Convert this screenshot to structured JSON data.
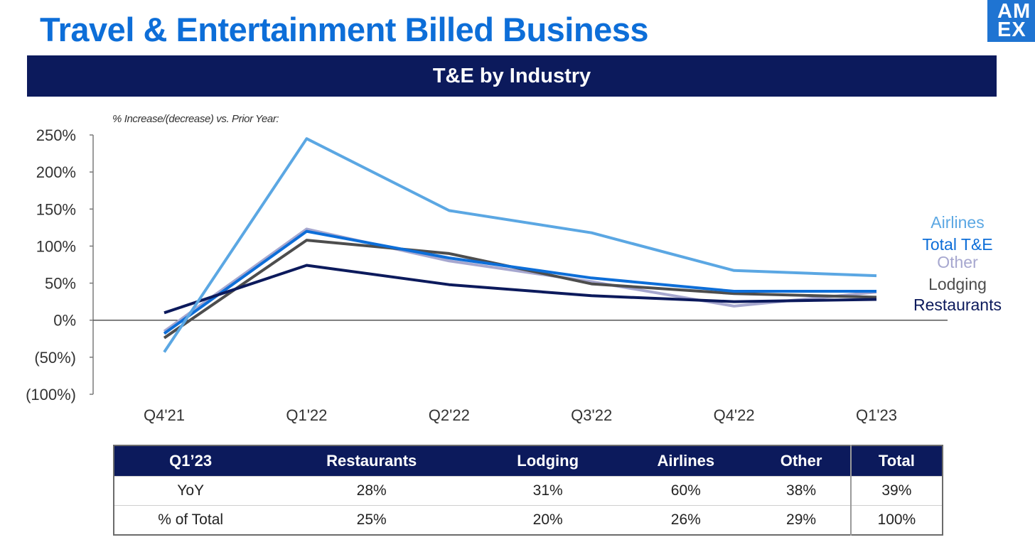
{
  "page": {
    "title": "Travel & Entertainment Billed Business",
    "banner": "T&E by Industry",
    "logo": {
      "line1": "AM",
      "line2": "EX"
    }
  },
  "colors": {
    "title": "#0d6ed8",
    "banner_bg": "#0c1a5c",
    "logo_bg": "#1f74d2",
    "airlines": "#5ba7e3",
    "total": "#0d6ed8",
    "other": "#a6a7cf",
    "lodging": "#4d4d4d",
    "restaurants": "#0c1a5c"
  },
  "chart_data": {
    "type": "line",
    "subtitle": "% Increase/(decrease) vs. Prior Year:",
    "categories": [
      "Q4'21",
      "Q1'22",
      "Q2'22",
      "Q3'22",
      "Q4'22",
      "Q1'23"
    ],
    "ylim": [
      -100,
      250
    ],
    "yticks": [
      {
        "value": 250,
        "label": "250%"
      },
      {
        "value": 200,
        "label": "200%"
      },
      {
        "value": 150,
        "label": "150%"
      },
      {
        "value": 100,
        "label": "100%"
      },
      {
        "value": 50,
        "label": "50%"
      },
      {
        "value": 0,
        "label": "0%"
      },
      {
        "value": -50,
        "label": "(50%)"
      },
      {
        "value": -100,
        "label": "(100%)"
      }
    ],
    "series": [
      {
        "name": "Other",
        "color": "#a6a7cf",
        "values": [
          -15,
          123,
          80,
          52,
          19,
          38
        ]
      },
      {
        "name": "Lodging",
        "color": "#4d4d4d",
        "values": [
          -24,
          108,
          90,
          49,
          36,
          31
        ]
      },
      {
        "name": "Total T&E",
        "color": "#0d6ed8",
        "values": [
          -18,
          120,
          84,
          57,
          39,
          39
        ]
      },
      {
        "name": "Restaurants",
        "color": "#0c1a5c",
        "values": [
          10,
          74,
          48,
          33,
          25,
          28
        ]
      },
      {
        "name": "Airlines",
        "color": "#5ba7e3",
        "values": [
          -43,
          245,
          148,
          118,
          67,
          60
        ]
      }
    ],
    "legend_order": [
      "Airlines",
      "Total T&E",
      "Other",
      "Lodging",
      "Restaurants"
    ],
    "legend_placement": "right",
    "grid": false
  },
  "table": {
    "headers": [
      "Q1’23",
      "Restaurants",
      "Lodging",
      "Airlines",
      "Other",
      "Total"
    ],
    "rows": [
      [
        "YoY",
        "28%",
        "31%",
        "60%",
        "38%",
        "39%"
      ],
      [
        "% of Total",
        "25%",
        "20%",
        "26%",
        "29%",
        "100%"
      ]
    ]
  }
}
